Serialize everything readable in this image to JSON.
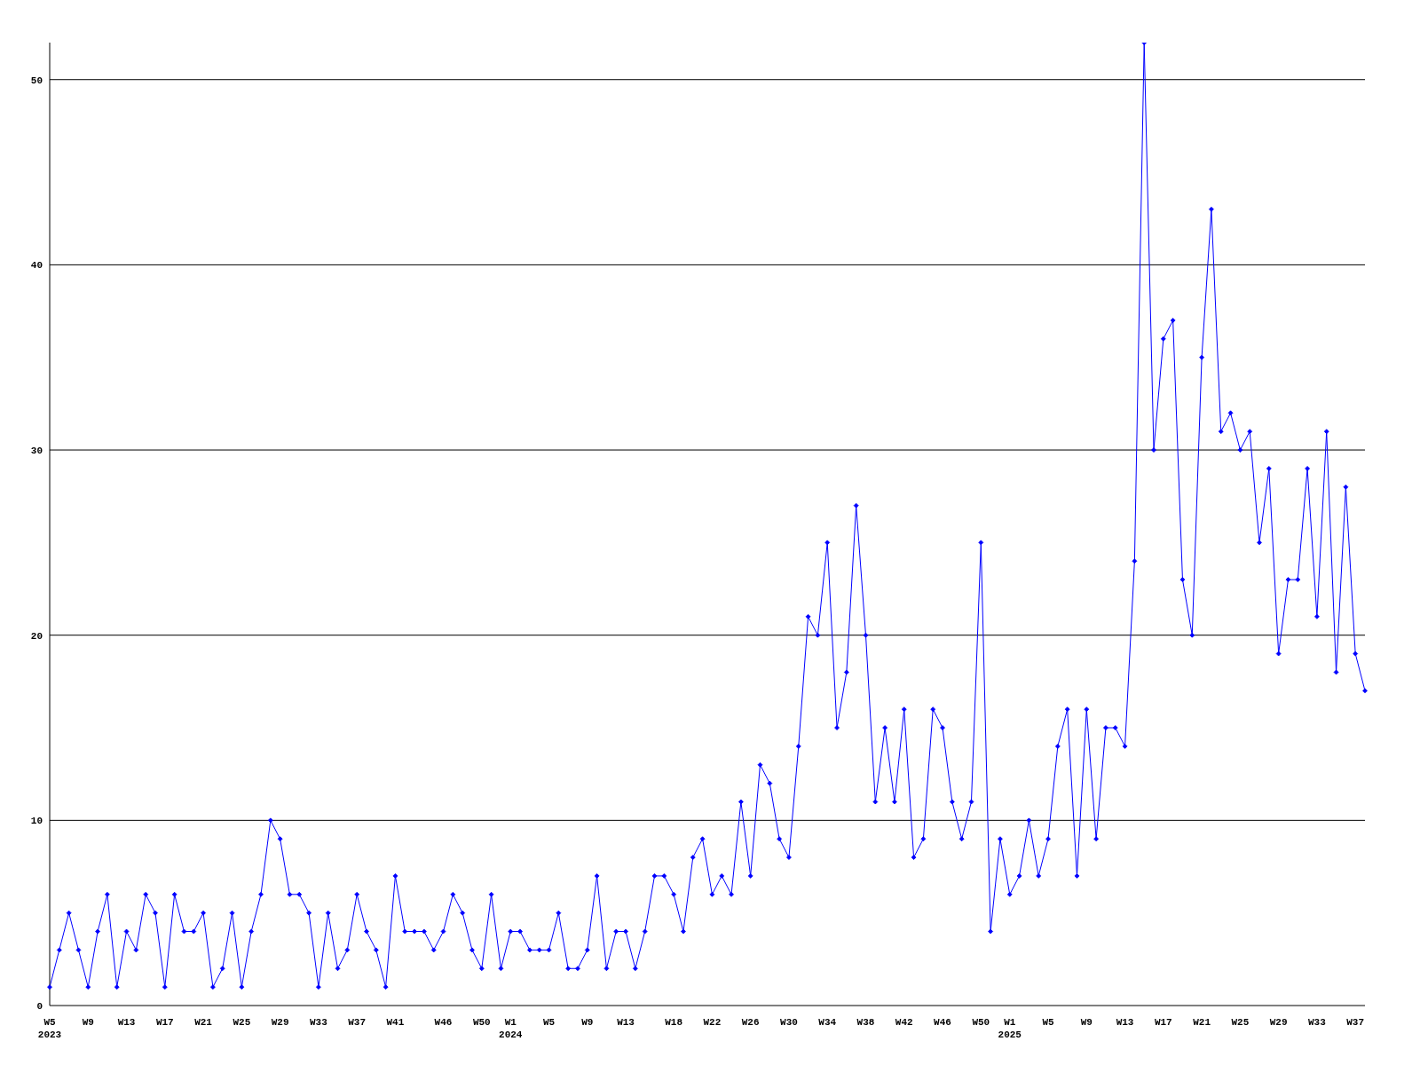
{
  "chart_data": {
    "type": "line",
    "categories": [
      "W5\n2023",
      null,
      null,
      null,
      "W9",
      null,
      null,
      null,
      "W13",
      null,
      null,
      null,
      "W17",
      null,
      null,
      null,
      "W21",
      null,
      null,
      null,
      "W25",
      null,
      null,
      null,
      "W29",
      null,
      null,
      null,
      "W33",
      null,
      null,
      null,
      "W37",
      null,
      null,
      null,
      "W41",
      null,
      null,
      null,
      null,
      "W46",
      null,
      null,
      null,
      "W50",
      null,
      null,
      "W1\n2024",
      null,
      null,
      null,
      "W5",
      null,
      null,
      null,
      "W9",
      null,
      null,
      null,
      "W13",
      null,
      null,
      null,
      null,
      "W18",
      null,
      null,
      null,
      "W22",
      null,
      null,
      null,
      "W26",
      null,
      null,
      null,
      "W30",
      null,
      null,
      null,
      "W34",
      null,
      null,
      null,
      "W38",
      null,
      null,
      null,
      "W42",
      null,
      null,
      null,
      "W46",
      null,
      null,
      null,
      "W50",
      null,
      null,
      "W1\n2025",
      null,
      null,
      null,
      "W5",
      null,
      null,
      null,
      "W9",
      null,
      null,
      null,
      "W13",
      null,
      null,
      null,
      "W17",
      null,
      null,
      null,
      "W21",
      null,
      null,
      null,
      "W25",
      null,
      null,
      null,
      "W29",
      null,
      null,
      null,
      "W33",
      null,
      null,
      null,
      "W37",
      null
    ],
    "series": [
      {
        "color": "#0000ff",
        "values": [
          1,
          3,
          5,
          3,
          1,
          4,
          6,
          1,
          4,
          3,
          6,
          5,
          1,
          6,
          4,
          4,
          5,
          1,
          2,
          5,
          1,
          4,
          6,
          10,
          9,
          6,
          6,
          5,
          1,
          5,
          2,
          3,
          6,
          4,
          3,
          1,
          7,
          4,
          4,
          4,
          3,
          4,
          6,
          5,
          3,
          2,
          6,
          2,
          4,
          4,
          3,
          3,
          3,
          5,
          2,
          2,
          3,
          7,
          2,
          4,
          4,
          2,
          4,
          7,
          7,
          6,
          4,
          8,
          9,
          6,
          7,
          6,
          11,
          7,
          13,
          12,
          9,
          8,
          14,
          21,
          20,
          25,
          15,
          18,
          27,
          20,
          11,
          15,
          11,
          16,
          8,
          9,
          16,
          15,
          11,
          9,
          11,
          25,
          4,
          9,
          6,
          7,
          10,
          7,
          9,
          14,
          16,
          7,
          16,
          9,
          15,
          15,
          14,
          24,
          52,
          30,
          36,
          37,
          23,
          20,
          35,
          43,
          31,
          32,
          30,
          31,
          25,
          29,
          19,
          23,
          23,
          29,
          21,
          31,
          18,
          28,
          19,
          17
        ]
      }
    ],
    "ylim": [
      0,
      52
    ],
    "yticks": [
      0,
      10,
      20,
      30,
      40,
      50
    ],
    "grid": "y",
    "marker": "diamond"
  }
}
